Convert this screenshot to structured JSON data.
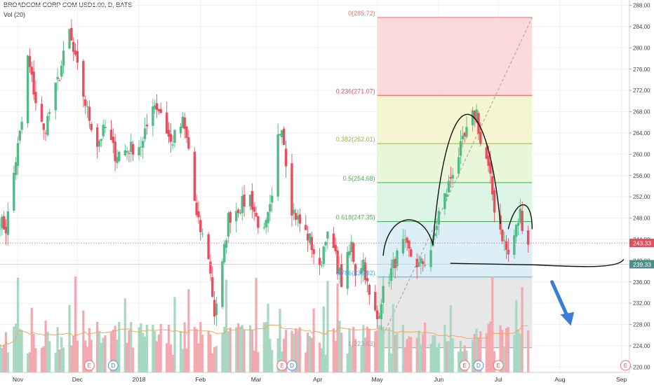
{
  "header": {
    "symbol_line": "BROADCOM CORP COM USD1.00, D, BATS",
    "volume_line": "Vol (20)"
  },
  "colors": {
    "up": "#53b987",
    "down": "#eb4d5c",
    "up_vol": "#a7d8c1",
    "down_vol": "#f3a9b0",
    "price_tag": "#e0505f",
    "support_tag": "#4d8e86",
    "arrow": "#3a7bd5",
    "pattern_line": "#111111",
    "volume_ma": "#f4a460"
  },
  "chart_data": {
    "type": "candlestick",
    "title": "BROADCOM CORP COM USD1.00, D, BATS",
    "y_range": [
      219,
      289
    ],
    "y_ticks": [
      "288.00",
      "284.00",
      "280.00",
      "276.00",
      "272.00",
      "268.00",
      "264.00",
      "260.00",
      "256.00",
      "252.00",
      "248.00",
      "244.00",
      "240.00",
      "236.00",
      "232.00",
      "228.00",
      "224.00",
      "220.00"
    ],
    "x_range": [
      "2017-10-23",
      "2018-09-05"
    ],
    "x_ticks": [
      {
        "date": "2017-11-01",
        "label": "Nov"
      },
      {
        "date": "2017-12-01",
        "label": "Dec"
      },
      {
        "date": "2018-01-01",
        "label": "2018"
      },
      {
        "date": "2018-02-01",
        "label": "Feb"
      },
      {
        "date": "2018-03-01",
        "label": "Mar"
      },
      {
        "date": "2018-04-01",
        "label": "Apr"
      },
      {
        "date": "2018-05-01",
        "label": "May"
      },
      {
        "date": "2018-06-01",
        "label": "Jun"
      },
      {
        "date": "2018-07-01",
        "label": "Jul"
      },
      {
        "date": "2018-08-01",
        "label": "Aug"
      },
      {
        "date": "2018-09-01",
        "label": "Sep"
      }
    ],
    "price_anchors": [
      [
        "2017-10-23",
        247.5
      ],
      [
        "2017-10-26",
        246
      ],
      [
        "2017-10-31",
        259
      ],
      [
        "2017-11-03",
        266
      ],
      [
        "2017-11-06",
        278
      ],
      [
        "2017-11-10",
        270
      ],
      [
        "2017-11-14",
        264
      ],
      [
        "2017-11-17",
        268
      ],
      [
        "2017-11-22",
        275
      ],
      [
        "2017-11-27",
        283
      ],
      [
        "2017-11-29",
        279
      ],
      [
        "2017-12-01",
        276
      ],
      [
        "2017-12-06",
        268
      ],
      [
        "2017-12-11",
        262
      ],
      [
        "2017-12-15",
        265
      ],
      [
        "2017-12-20",
        260
      ],
      [
        "2017-12-27",
        261
      ],
      [
        "2018-01-03",
        262
      ],
      [
        "2018-01-08",
        270
      ],
      [
        "2018-01-12",
        268
      ],
      [
        "2018-01-17",
        262
      ],
      [
        "2018-01-23",
        266
      ],
      [
        "2018-01-26",
        261
      ],
      [
        "2018-01-30",
        248
      ],
      [
        "2018-02-05",
        241
      ],
      [
        "2018-02-08",
        230
      ],
      [
        "2018-02-12",
        239
      ],
      [
        "2018-02-15",
        248
      ],
      [
        "2018-02-20",
        250
      ],
      [
        "2018-02-26",
        252
      ],
      [
        "2018-03-01",
        248
      ],
      [
        "2018-03-05",
        245
      ],
      [
        "2018-03-09",
        251
      ],
      [
        "2018-03-12",
        263
      ],
      [
        "2018-03-14",
        266
      ],
      [
        "2018-03-16",
        259
      ],
      [
        "2018-03-19",
        250
      ],
      [
        "2018-03-23",
        247
      ],
      [
        "2018-03-28",
        244
      ],
      [
        "2018-04-02",
        238
      ],
      [
        "2018-04-05",
        245
      ],
      [
        "2018-04-09",
        242
      ],
      [
        "2018-04-13",
        236
      ],
      [
        "2018-04-18",
        243
      ],
      [
        "2018-04-20",
        238
      ],
      [
        "2018-04-24",
        240
      ],
      [
        "2018-04-27",
        233
      ],
      [
        "2018-05-01",
        229
      ],
      [
        "2018-05-03",
        233
      ],
      [
        "2018-05-07",
        237
      ],
      [
        "2018-05-10",
        240
      ],
      [
        "2018-05-14",
        243
      ],
      [
        "2018-05-18",
        241
      ],
      [
        "2018-05-22",
        239
      ],
      [
        "2018-05-25",
        240
      ],
      [
        "2018-05-29",
        243
      ],
      [
        "2018-06-01",
        249
      ],
      [
        "2018-06-05",
        253
      ],
      [
        "2018-06-08",
        257
      ],
      [
        "2018-06-12",
        261
      ],
      [
        "2018-06-15",
        264
      ],
      [
        "2018-06-18",
        267
      ],
      [
        "2018-06-20",
        268
      ],
      [
        "2018-06-22",
        262
      ],
      [
        "2018-06-25",
        259
      ],
      [
        "2018-06-27",
        255
      ],
      [
        "2018-06-29",
        250
      ],
      [
        "2018-07-02",
        246
      ],
      [
        "2018-07-05",
        242
      ],
      [
        "2018-07-06",
        241
      ],
      [
        "2018-07-10",
        246
      ],
      [
        "2018-07-12",
        249
      ],
      [
        "2018-07-13",
        247
      ],
      [
        "2018-07-16",
        243
      ]
    ],
    "fibonacci": {
      "start_date": "2018-05-01",
      "end_date": "2018-07-18",
      "levels": [
        {
          "ratio": "0",
          "price": 285.72,
          "label": "0(285.72)",
          "color": "#e57373",
          "fill": "#fbd3d3"
        },
        {
          "ratio": "0.236",
          "price": 271.07,
          "label": "0.236(271.07)",
          "color": "#e04f5f",
          "fill": "#f3f4c9"
        },
        {
          "ratio": "0.382",
          "price": 262.01,
          "label": "0.382(262.01)",
          "color": "#a5b534",
          "fill": "#e5f5d0"
        },
        {
          "ratio": "0.5",
          "price": 254.68,
          "label": "0.5(254.68)",
          "color": "#4caf50",
          "fill": "#d7f3e0"
        },
        {
          "ratio": "0.618",
          "price": 247.35,
          "label": "0.618(247.35)",
          "color": "#4caf50",
          "fill": "#d6ecf6"
        },
        {
          "ratio": "0.786",
          "price": 236.92,
          "label": "0.786(236.92)",
          "color": "#42a5f5",
          "fill": "#e3e3e3"
        },
        {
          "ratio": "1",
          "price": 223.63,
          "label": "1(223.63)",
          "color": "#9e9e9e",
          "fill": ""
        }
      ]
    },
    "current_price": {
      "value": 243.33,
      "label": "243.33"
    },
    "support_level": {
      "value": 239.33,
      "label": "239.33"
    },
    "events": [
      {
        "date": "2017-12-07",
        "type": "E"
      },
      {
        "date": "2017-12-19",
        "type": "D"
      },
      {
        "date": "2018-03-14",
        "type": "E"
      },
      {
        "date": "2018-03-19",
        "type": "D"
      },
      {
        "date": "2018-06-14",
        "type": "E"
      },
      {
        "date": "2018-06-21",
        "type": "D"
      },
      {
        "date": "2018-07-01",
        "type": "E"
      },
      {
        "date": "2018-09-03",
        "type": "E"
      }
    ]
  }
}
